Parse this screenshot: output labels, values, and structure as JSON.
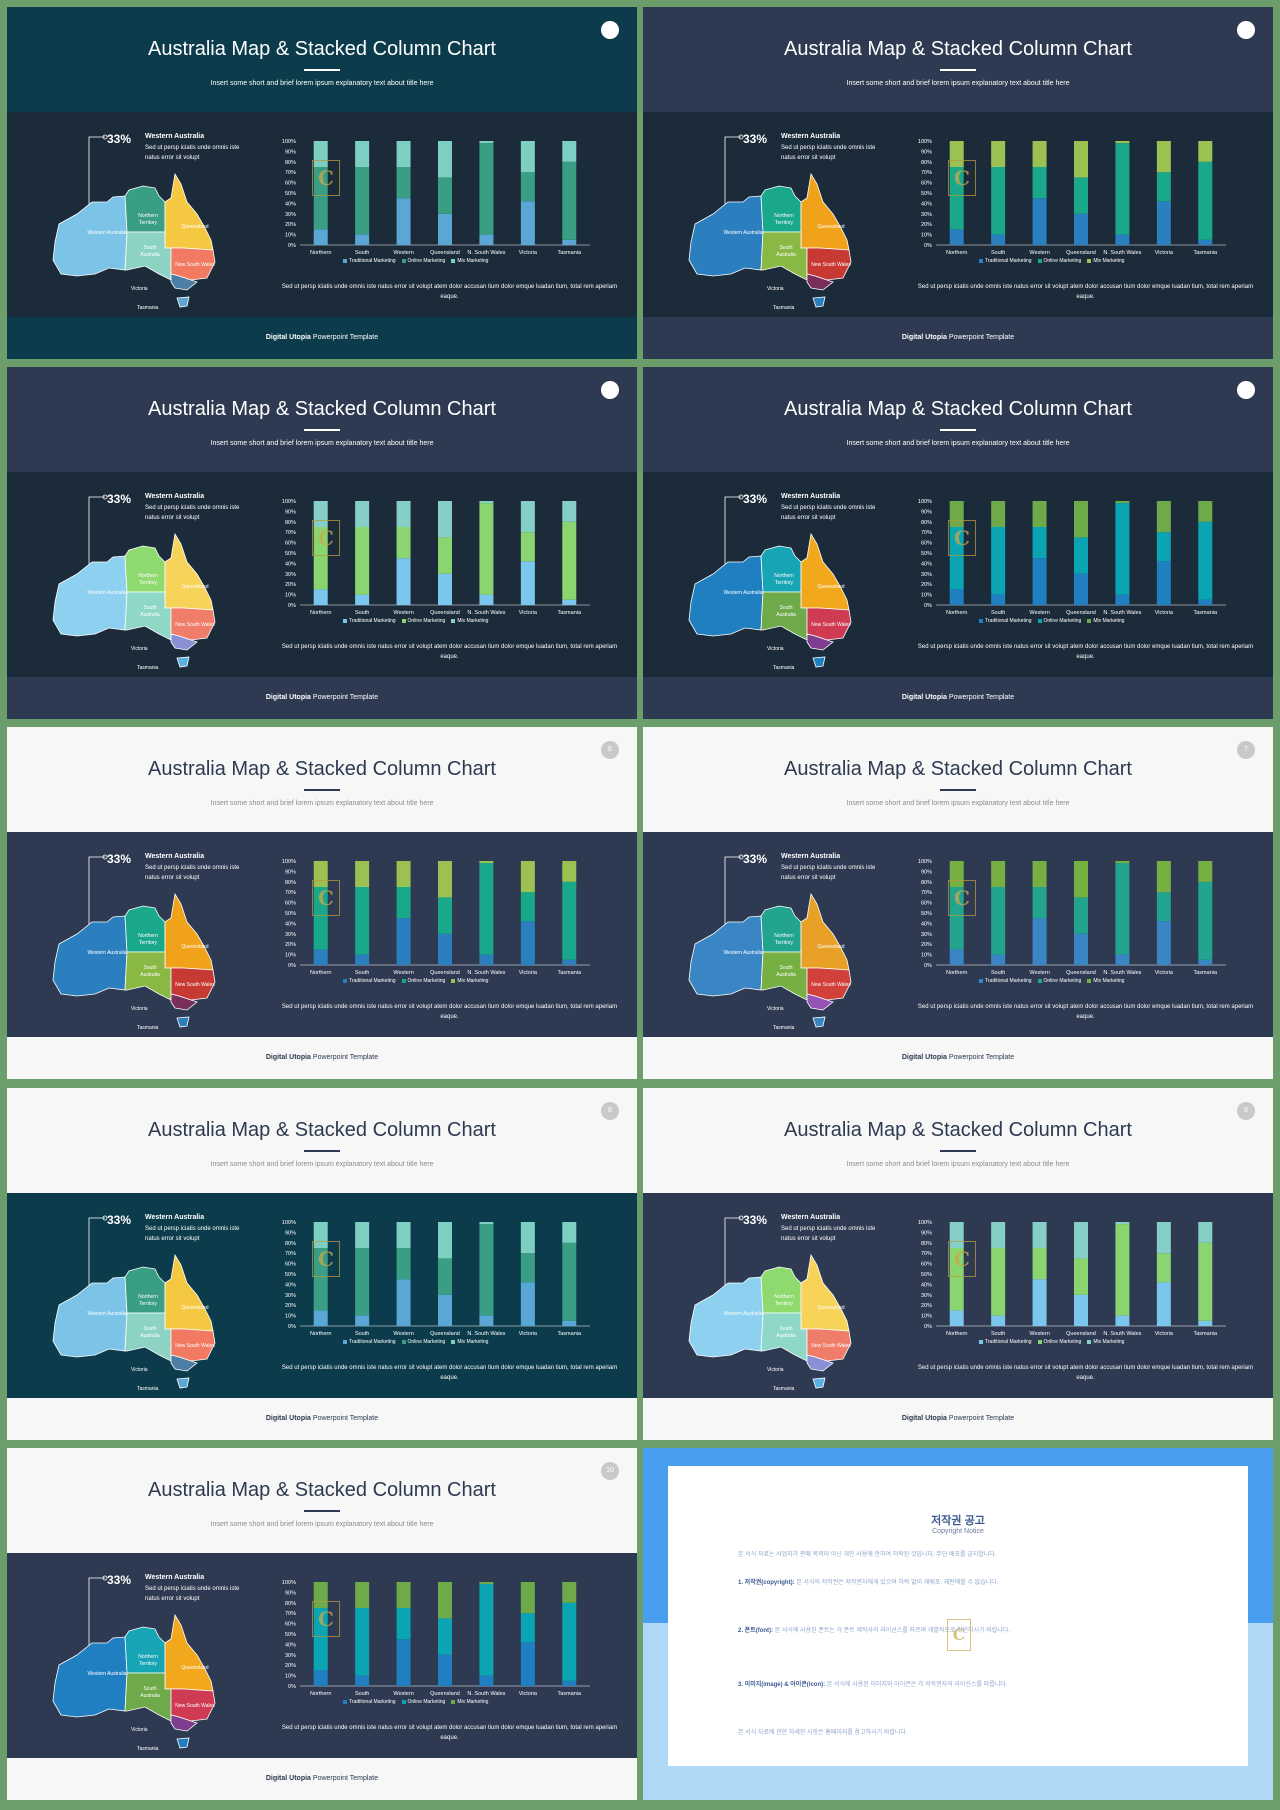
{
  "slides": [
    {
      "title": "Australia Map & Stacked Column Chart",
      "subtitle": "Insert some short and brief lorem ipsum explanatory text about title here",
      "badge": "",
      "theme": "tealdark",
      "palette": "teal"
    },
    {
      "title": "Australia Map & Stacked Column Chart",
      "subtitle": "Insert some short and brief lorem ipsum explanatory text about title here",
      "badge": "",
      "theme": "navydark",
      "palette": "vivid"
    },
    {
      "title": "Australia Map & Stacked Column Chart",
      "subtitle": "Insert some short and brief lorem ipsum explanatory text about title here",
      "badge": "",
      "theme": "navydark",
      "palette": "light"
    },
    {
      "title": "Australia Map & Stacked Column Chart",
      "subtitle": "Insert some short and brief lorem ipsum explanatory text about title here",
      "badge": "",
      "theme": "navydark",
      "palette": "cyan"
    },
    {
      "title": "Australia Map & Stacked Column Chart",
      "subtitle": "Insert some short and brief lorem ipsum explanatory text about title here",
      "badge": "6",
      "theme": "light",
      "palette": "vivid"
    },
    {
      "title": "Australia Map & Stacked Column Chart",
      "subtitle": "Insert some short and brief lorem ipsum explanatory text about title here",
      "badge": "7",
      "theme": "light",
      "palette": "vivid2"
    },
    {
      "title": "Australia Map & Stacked Column Chart",
      "subtitle": "Insert some short and brief lorem ipsum explanatory text about title here",
      "badge": "8",
      "theme": "lightteal",
      "palette": "teal"
    },
    {
      "title": "Australia Map & Stacked Column Chart",
      "subtitle": "Insert some short and brief lorem ipsum explanatory text about title here",
      "badge": "9",
      "theme": "light",
      "palette": "light"
    },
    {
      "title": "Australia Map & Stacked Column Chart",
      "subtitle": "Insert some short and brief lorem ipsum explanatory text about title here",
      "badge": "10",
      "theme": "light",
      "palette": "cyan"
    }
  ],
  "region_labels": {
    "western": "Western Australia",
    "northern": "Northern Territory",
    "queensland": "Queensland",
    "south": "South Australia",
    "nsw": "New South Wales",
    "victoria": "Victoria",
    "tasmania": "Tasmania"
  },
  "callout": {
    "percent": "33%",
    "region": "Western Australia",
    "text": "Sed ut persp iciatis unde omnis iste natus error sit volupt"
  },
  "body_text": "Sed ut persp iciatis unde omnis iste natus error sit volupt atem dolor accusan tium dolor emque luadan tium, total rem aperiam eaque.",
  "footer": {
    "brand": "Digital Utopia",
    "rest": "Powerpoint Template"
  },
  "chart_data": {
    "type": "bar",
    "stacked": true,
    "categories": [
      "Northern",
      "South",
      "Western",
      "Queensland",
      "N. South Wales",
      "Victoria",
      "Tasmania"
    ],
    "series": [
      {
        "name": "Traditional Marketing",
        "values": [
          15,
          10,
          45,
          30,
          10,
          42,
          5
        ]
      },
      {
        "name": "Online Marketing",
        "values": [
          60,
          65,
          30,
          35,
          88,
          28,
          75
        ]
      },
      {
        "name": "Mix Marketing",
        "values": [
          25,
          25,
          25,
          35,
          2,
          30,
          20
        ]
      }
    ],
    "yticks": [
      "0%",
      "10%",
      "20%",
      "30%",
      "40%",
      "50%",
      "60%",
      "70%",
      "80%",
      "90%",
      "100%"
    ],
    "ylim": [
      0,
      100
    ],
    "legend": "bottom"
  },
  "copyright": {
    "title": "저작권 공고",
    "subtitle": "Copyright Notice",
    "intro": "본 서식 자료는 사업자가 판매 목적이 아닌 개인 사용에 한하여 허락된 것입니다. 무단 배포를 금지합니다.",
    "p1_label": "1. 저작권(copyright):",
    "p1": "본 서식의 저작권은 저작권자에게 있으며 허락 없이 재배포, 재판매할 수 없습니다.",
    "p2_label": "2. 폰트(font):",
    "p2": "본 서식에 사용된 폰트는 각 폰트 제작사의 라이선스를 따르며 개별적으로 확인하시기 바랍니다.",
    "p3_label": "3. 이미지(image) & 아이콘(icon):",
    "p3": "본 서식에 사용된 이미지와 아이콘은 각 저작권자의 라이선스를 따릅니다.",
    "outro": "본 서식 자료에 관한 자세한 사항은 홈페이지를 참고하시기 바랍니다."
  }
}
